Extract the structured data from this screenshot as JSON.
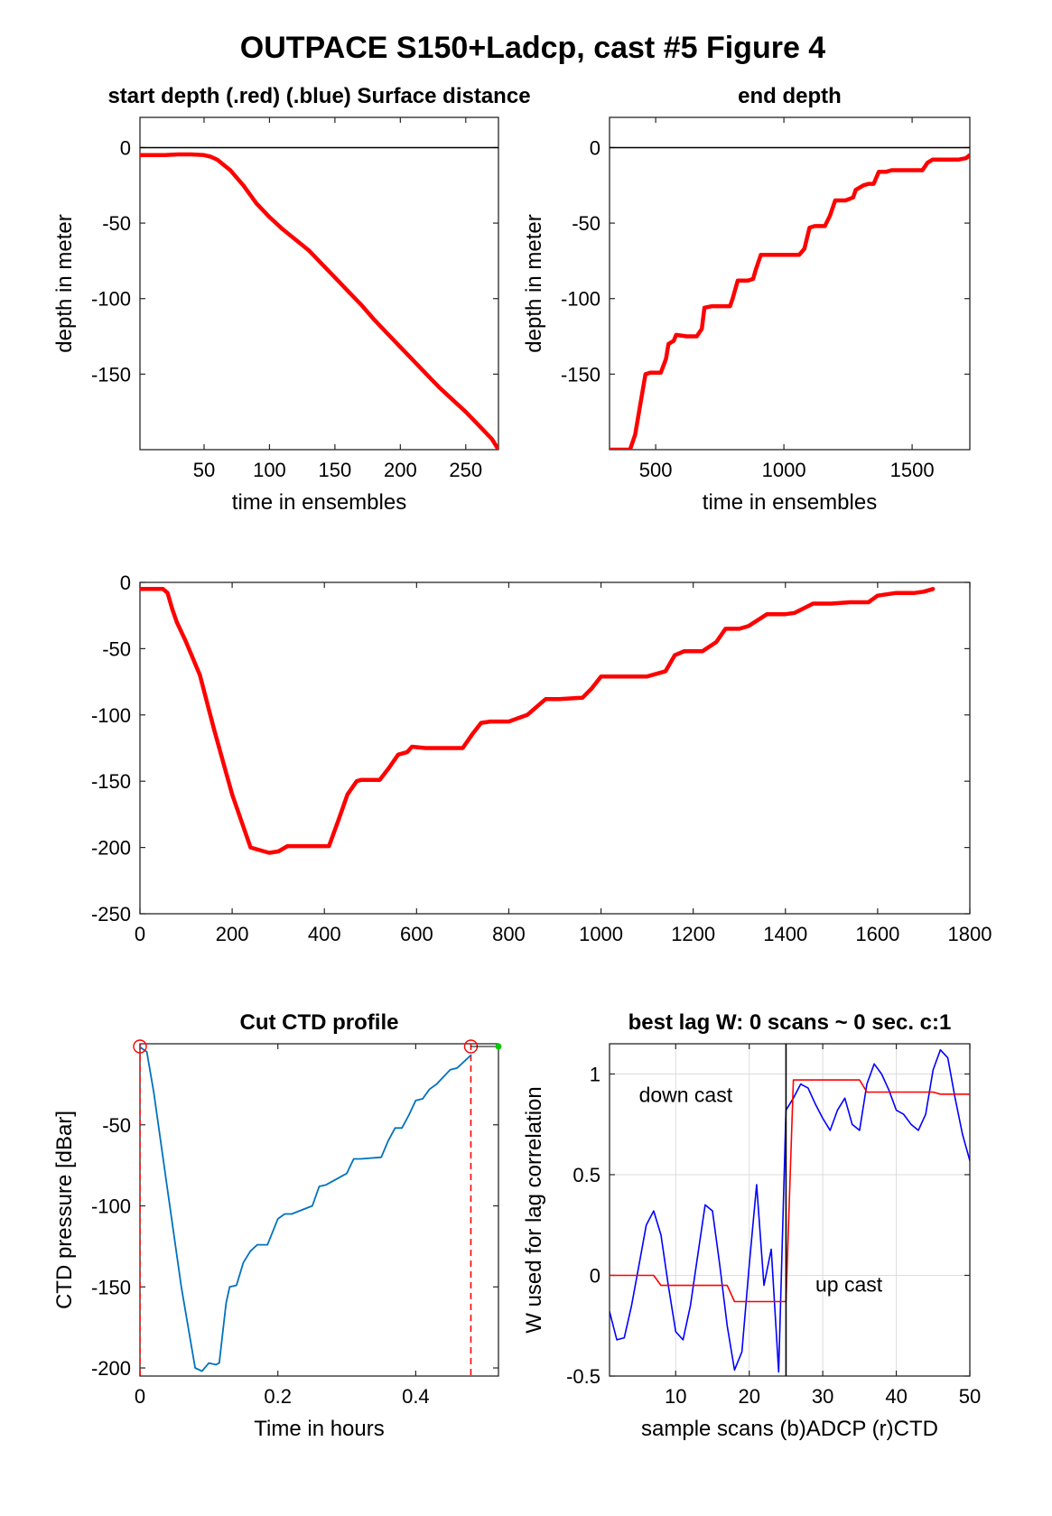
{
  "figure_title": "OUTPACE S150+Ladcp, cast #5   Figure 4",
  "colors": {
    "depth_line": "#ff0000",
    "ctd_line": "#0072bd",
    "adcp_w": "#0000ff",
    "ctd_w": "#ff0000",
    "marker": "#ff0000",
    "green_dot": "#00cc00"
  },
  "chart_data": [
    {
      "id": "start-depth",
      "type": "line",
      "title": "start depth (.red) (.blue) Surface distance",
      "xlabel": "time in ensembles",
      "ylabel": "depth in meter",
      "xlim": [
        1,
        275
      ],
      "ylim": [
        -200,
        20
      ],
      "xticks": [
        50,
        100,
        150,
        200,
        250
      ],
      "yticks": [
        0,
        -50,
        -100,
        -150
      ],
      "zero_line": true,
      "series": [
        {
          "x": [
            1,
            10,
            20,
            30,
            40,
            50,
            55,
            60,
            70,
            80,
            90,
            100,
            110,
            120,
            130,
            140,
            150,
            160,
            170,
            180,
            190,
            200,
            210,
            220,
            230,
            240,
            250,
            260,
            270,
            275
          ],
          "y": [
            -5,
            -5,
            -5,
            -4.5,
            -4.5,
            -5,
            -6,
            -8,
            -15,
            -25,
            -37,
            -46,
            -54,
            -61,
            -68,
            -77,
            -86,
            -95,
            -104,
            -114,
            -123,
            -132,
            -141,
            -150,
            -159,
            -167,
            -175,
            -184,
            -193,
            -200
          ]
        }
      ]
    },
    {
      "id": "end-depth",
      "type": "line",
      "title": "end depth",
      "xlabel": "time in ensembles",
      "ylabel": "depth in meter",
      "xlim": [
        320,
        1725
      ],
      "ylim": [
        -200,
        20
      ],
      "xticks": [
        500,
        1000,
        1500
      ],
      "yticks": [
        0,
        -50,
        -100,
        -150
      ],
      "zero_line": true,
      "series": [
        {
          "x": [
            320,
            400,
            420,
            440,
            460,
            480,
            520,
            540,
            550,
            570,
            580,
            620,
            660,
            680,
            690,
            720,
            760,
            790,
            800,
            820,
            860,
            880,
            890,
            910,
            960,
            980,
            990,
            1000,
            1060,
            1080,
            1100,
            1120,
            1160,
            1180,
            1200,
            1240,
            1270,
            1280,
            1310,
            1330,
            1350,
            1370,
            1400,
            1420,
            1440,
            1480,
            1540,
            1560,
            1580,
            1640,
            1680,
            1710,
            1725
          ],
          "y": [
            -200,
            -200,
            -190,
            -170,
            -150,
            -149,
            -149,
            -140,
            -130,
            -128,
            -124,
            -125,
            -125,
            -120,
            -106,
            -105,
            -105,
            -105,
            -100,
            -88,
            -88,
            -87,
            -81,
            -71,
            -71,
            -71,
            -71,
            -71,
            -71,
            -67,
            -53,
            -52,
            -52,
            -45,
            -35,
            -35,
            -33,
            -28,
            -25,
            -24,
            -24,
            -16,
            -16,
            -15,
            -15,
            -15,
            -15,
            -10,
            -8,
            -8,
            -8,
            -7,
            -5
          ]
        }
      ]
    },
    {
      "id": "full-depth",
      "type": "line",
      "title": "",
      "xlabel": "",
      "ylabel": "",
      "xlim": [
        0,
        1800
      ],
      "ylim": [
        -250,
        0
      ],
      "xticks": [
        0,
        200,
        400,
        600,
        800,
        1000,
        1200,
        1400,
        1600,
        1800
      ],
      "yticks": [
        0,
        -50,
        -100,
        -150,
        -200,
        -250
      ],
      "zero_line": false,
      "series": [
        {
          "x": [
            0,
            50,
            60,
            70,
            80,
            100,
            130,
            160,
            200,
            240,
            280,
            300,
            320,
            340,
            380,
            410,
            430,
            450,
            470,
            480,
            520,
            540,
            560,
            580,
            590,
            620,
            700,
            720,
            740,
            760,
            800,
            840,
            880,
            910,
            960,
            980,
            1000,
            1040,
            1100,
            1140,
            1160,
            1180,
            1220,
            1250,
            1270,
            1300,
            1320,
            1360,
            1400,
            1420,
            1460,
            1480,
            1500,
            1540,
            1580,
            1600,
            1640,
            1680,
            1700,
            1720
          ],
          "y": [
            -5,
            -5,
            -8,
            -20,
            -30,
            -45,
            -70,
            -110,
            -160,
            -200,
            -204,
            -203,
            -199,
            -199,
            -199,
            -199,
            -180,
            -160,
            -150,
            -149,
            -149,
            -140,
            -130,
            -128,
            -124,
            -125,
            -125,
            -115,
            -106,
            -105,
            -105,
            -100,
            -88,
            -88,
            -87,
            -80,
            -71,
            -71,
            -71,
            -67,
            -55,
            -52,
            -52,
            -45,
            -35,
            -35,
            -33,
            -24,
            -24,
            -23,
            -16,
            -16,
            -16,
            -15,
            -15,
            -10,
            -8,
            -8,
            -7,
            -5
          ]
        }
      ]
    },
    {
      "id": "cut-ctd",
      "type": "line",
      "title": "Cut CTD profile",
      "xlabel": "Time in hours",
      "ylabel": "CTD pressure [dBar]",
      "xlim": [
        0,
        0.52
      ],
      "ylim": [
        -205,
        0
      ],
      "xticks": [
        0,
        0.2,
        0.4
      ],
      "yticks": [
        -50,
        -100,
        -150,
        -200
      ],
      "cut_markers_x": [
        0,
        0.48
      ],
      "series": [
        {
          "x": [
            0,
            0.01,
            0.02,
            0.04,
            0.06,
            0.08,
            0.09,
            0.1,
            0.11,
            0.115,
            0.125,
            0.13,
            0.14,
            0.15,
            0.16,
            0.17,
            0.185,
            0.2,
            0.21,
            0.215,
            0.22,
            0.25,
            0.26,
            0.27,
            0.3,
            0.31,
            0.32,
            0.35,
            0.36,
            0.37,
            0.38,
            0.39,
            0.4,
            0.41,
            0.42,
            0.43,
            0.45,
            0.46,
            0.48
          ],
          "y": [
            -2,
            -5,
            -30,
            -90,
            -150,
            -200,
            -202,
            -197,
            -198,
            -197,
            -160,
            -150,
            -149,
            -135,
            -128,
            -124,
            -124,
            -108,
            -105,
            -105,
            -105,
            -100,
            -88,
            -87,
            -80,
            -71,
            -71,
            -70,
            -60,
            -52,
            -52,
            -44,
            -35,
            -34,
            -28,
            -25,
            -16,
            -15,
            -7
          ]
        }
      ]
    },
    {
      "id": "best-lag",
      "type": "line",
      "title": "best lag W: 0 scans ~ 0 sec.  c:1",
      "xlabel": "sample scans (b)ADCP (r)CTD",
      "ylabel": "W used for lag correlation",
      "xlim": [
        1,
        50
      ],
      "ylim": [
        -0.5,
        1.15
      ],
      "xticks": [
        10,
        20,
        30,
        40,
        50
      ],
      "yticks": [
        1,
        0.5,
        0,
        -0.5
      ],
      "grid": true,
      "lag_line_x": 25,
      "annotations": [
        "down cast",
        "up cast"
      ],
      "series": [
        {
          "name": "ADCP",
          "x": [
            1,
            2,
            3,
            4,
            5,
            6,
            7,
            8,
            9,
            10,
            11,
            12,
            13,
            14,
            15,
            16,
            17,
            18,
            19,
            20,
            21,
            22,
            23,
            24,
            25,
            26,
            27,
            28,
            29,
            30,
            31,
            32,
            33,
            34,
            35,
            36,
            37,
            38,
            39,
            40,
            41,
            42,
            43,
            44,
            45,
            46,
            47,
            48,
            49,
            50
          ],
          "y": [
            -0.18,
            -0.32,
            -0.31,
            -0.15,
            0.05,
            0.25,
            0.32,
            0.2,
            -0.05,
            -0.28,
            -0.32,
            -0.15,
            0.1,
            0.35,
            0.32,
            0.05,
            -0.25,
            -0.47,
            -0.38,
            0.05,
            0.45,
            -0.05,
            0.13,
            -0.48,
            0.82,
            0.88,
            0.95,
            0.93,
            0.85,
            0.78,
            0.72,
            0.82,
            0.88,
            0.75,
            0.72,
            0.95,
            1.05,
            1.0,
            0.92,
            0.82,
            0.8,
            0.75,
            0.72,
            0.8,
            1.02,
            1.12,
            1.08,
            0.88,
            0.7,
            0.57
          ]
        },
        {
          "name": "CTD",
          "x": [
            1,
            5,
            7,
            8,
            17,
            18,
            25,
            26,
            35,
            36,
            45,
            46,
            50
          ],
          "y": [
            0,
            0,
            0,
            -0.05,
            -0.05,
            -0.13,
            -0.13,
            0.97,
            0.97,
            0.91,
            0.91,
            0.9,
            0.9
          ]
        }
      ]
    }
  ]
}
